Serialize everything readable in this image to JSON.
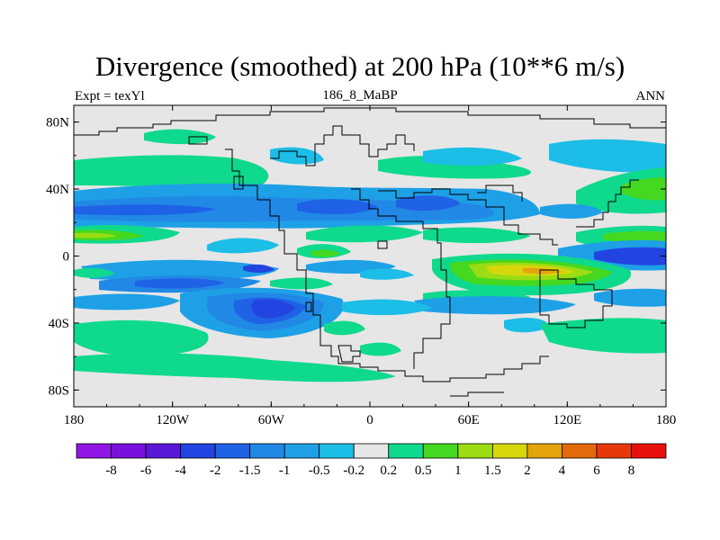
{
  "figure": {
    "title": "Divergence (smoothed) at 200 hPa (10**6 m/s)",
    "left_string": "Expt = texYl",
    "center_string": "186_8_MaBP",
    "right_string": "ANN"
  },
  "map_data": {
    "projection": "cylindrical equidistant",
    "lon_range": [
      -180,
      180
    ],
    "lat_range": [
      -90,
      90
    ],
    "x_ticks": [
      {
        "value": -180,
        "label": "180"
      },
      {
        "value": -120,
        "label": "120W"
      },
      {
        "value": -60,
        "label": "60W"
      },
      {
        "value": 0,
        "label": "0"
      },
      {
        "value": 60,
        "label": "60E"
      },
      {
        "value": 120,
        "label": "120E"
      },
      {
        "value": 180,
        "label": "180"
      }
    ],
    "y_ticks": [
      {
        "value": 80,
        "label": "80N"
      },
      {
        "value": 40,
        "label": "40N"
      },
      {
        "value": 0,
        "label": "0"
      },
      {
        "value": -40,
        "label": "40S"
      },
      {
        "value": -80,
        "label": "80S"
      }
    ],
    "background_color": "#e6e6e6",
    "coastline_color": "#000000"
  },
  "colorbar": {
    "labels": [
      "-8",
      "-6",
      "-4",
      "-2",
      "-1.5",
      "-1",
      "-0.5",
      "-0.2",
      "0.2",
      "0.5",
      "1",
      "1.5",
      "2",
      "4",
      "6",
      "8"
    ],
    "colors": [
      "#8f16e4",
      "#7a10dd",
      "#5b17d8",
      "#2244e0",
      "#1f62e6",
      "#2288e6",
      "#1ea0e6",
      "#1cbde6",
      "#e6e6e6",
      "#0fd98c",
      "#45d820",
      "#9bdc12",
      "#d6d60c",
      "#e3a40c",
      "#e36a0a",
      "#e8380b",
      "#e8100c"
    ]
  }
}
